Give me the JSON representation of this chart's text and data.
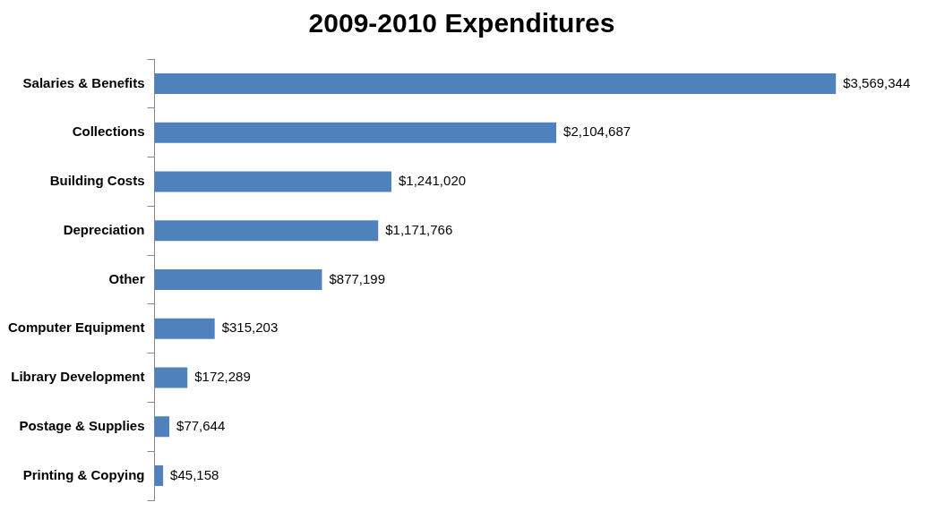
{
  "chart_data": {
    "type": "bar",
    "orientation": "horizontal",
    "title": "2009-2010 Expenditures",
    "categories": [
      "Salaries & Benefits",
      "Collections",
      "Building Costs",
      "Depreciation",
      "Other",
      "Computer Equipment",
      "Library Development",
      "Postage & Supplies",
      "Printing & Copying"
    ],
    "values": [
      3569344,
      2104687,
      1241020,
      1171766,
      877199,
      315203,
      172289,
      77644,
      45158
    ],
    "value_labels": [
      "$3,569,344",
      "$2,104,687",
      "$1,241,020",
      "$1,171,766",
      "$877,199",
      "$315,203",
      "$172,289",
      "$77,644",
      "$45,158"
    ],
    "color": "#4f81bd",
    "grid": false,
    "legend": false
  }
}
